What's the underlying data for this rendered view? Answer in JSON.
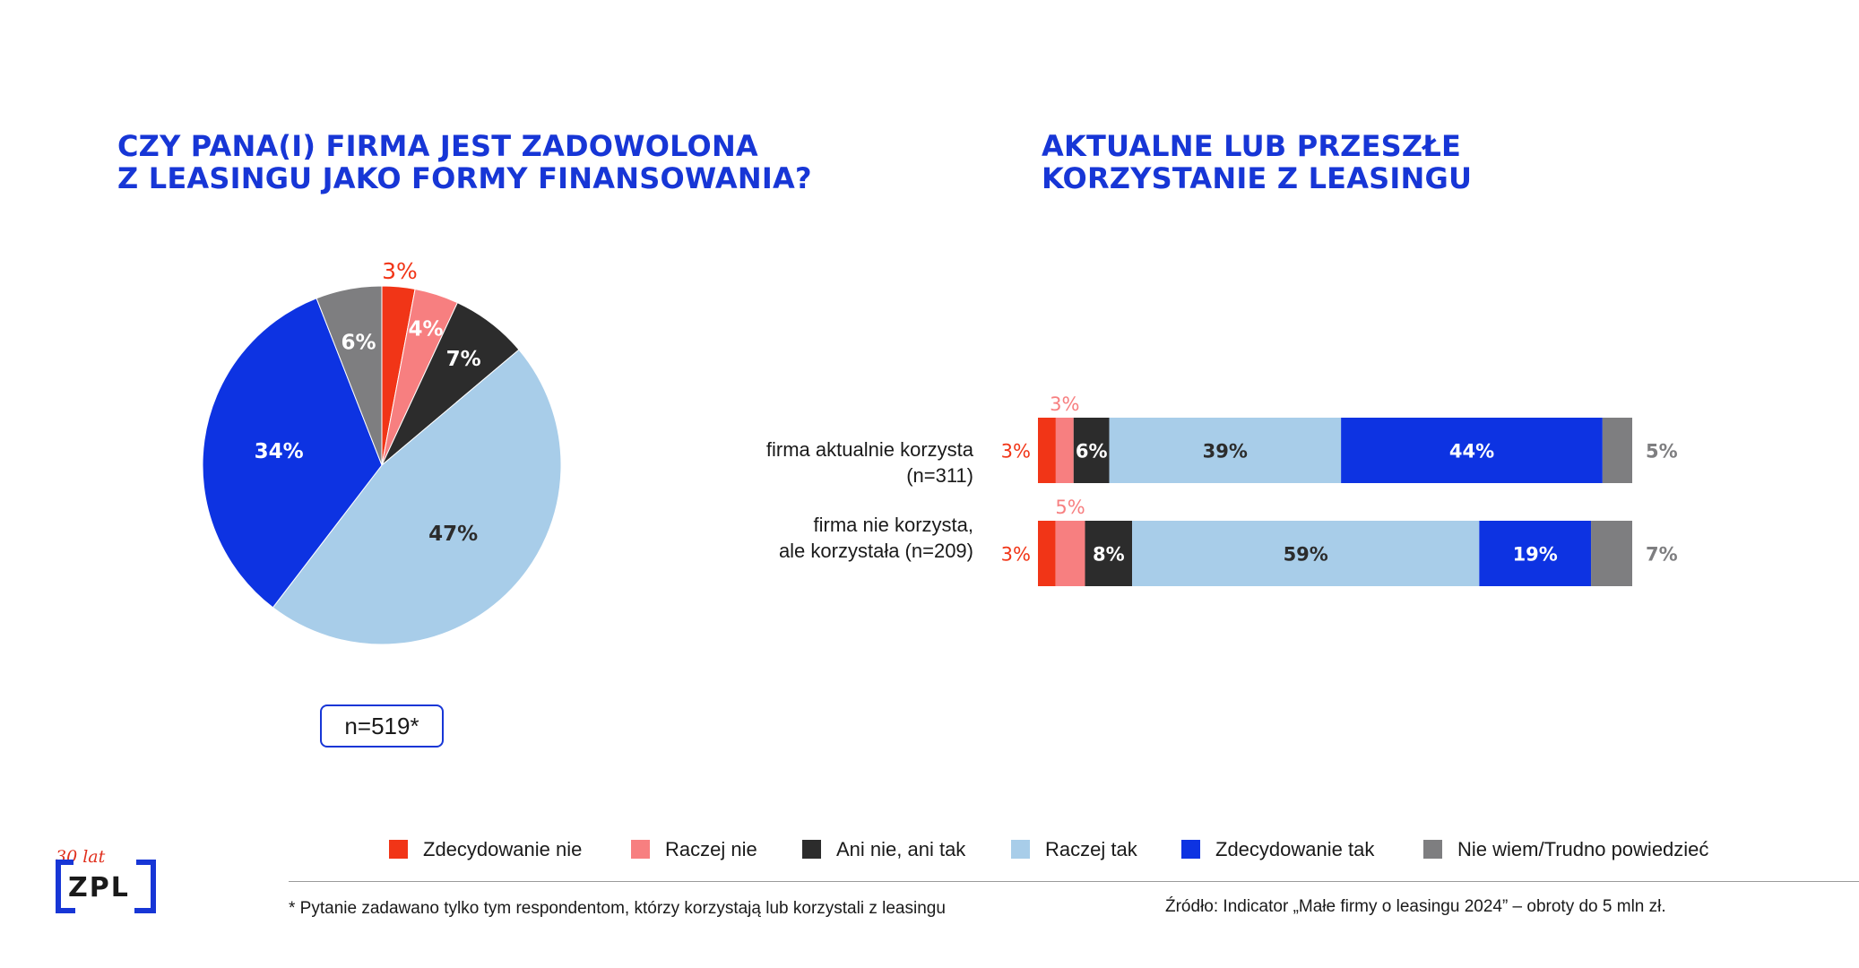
{
  "titles": {
    "left": [
      "CZY PANA(I) FIRMA JEST ZADOWOLONA",
      "Z LEASINGU JAKO FORMY FINANSOWANIA?"
    ],
    "right": [
      "AKTUALNE LUB PRZESZŁE",
      "KORZYSTANIE Z LEASINGU"
    ]
  },
  "colors": {
    "zdecydowanie_nie": "#f13517",
    "raczej_nie": "#f77f80",
    "ani_nie_ani_tak": "#2c2c2c",
    "raczej_tak": "#a8cde9",
    "zdecydowanie_tak": "#0d33e2",
    "nie_wiem": "#7e7e80",
    "title": "#1736d6"
  },
  "pie_n": "n=519*",
  "chart_data": [
    {
      "type": "pie",
      "title": "CZY PANA(I) FIRMA JEST ZADOWOLONA Z LEASINGU JAKO FORMY FINANSOWANIA?",
      "categories": [
        "Zdecydowanie nie",
        "Raczej nie",
        "Ani nie, ani tak",
        "Raczej tak",
        "Zdecydowanie tak",
        "Nie wiem/Trudno powiedzieć"
      ],
      "values": [
        3,
        4,
        7,
        47,
        34,
        6
      ],
      "labels": [
        "3%",
        "4%",
        "7%",
        "47%",
        "34%",
        "6%"
      ],
      "note": "n=519*"
    },
    {
      "type": "bar",
      "orientation": "horizontal",
      "stacked": true,
      "title": "AKTUALNE LUB PRZESZŁE KORZYSTANIE Z LEASINGU",
      "categories": [
        "firma aktualnie korzysta (n=311)",
        "firma nie korzysta, ale korzystała (n=209)"
      ],
      "category_lines": [
        [
          "firma aktualnie korzysta",
          "(n=311)"
        ],
        [
          "firma nie korzysta,",
          "ale korzystała (n=209)"
        ]
      ],
      "series": [
        {
          "name": "Zdecydowanie nie",
          "values": [
            3,
            3
          ],
          "labels": [
            "3%",
            "3%"
          ]
        },
        {
          "name": "Raczej nie",
          "values": [
            3,
            5
          ],
          "labels": [
            "3%",
            "5%"
          ]
        },
        {
          "name": "Ani nie, ani tak",
          "values": [
            6,
            8
          ],
          "labels": [
            "6%",
            "8%"
          ]
        },
        {
          "name": "Raczej tak",
          "values": [
            39,
            59
          ],
          "labels": [
            "39%",
            "59%"
          ]
        },
        {
          "name": "Zdecydowanie tak",
          "values": [
            44,
            19
          ],
          "labels": [
            "44%",
            "19%"
          ]
        },
        {
          "name": "Nie wiem/Trudno powiedzieć",
          "values": [
            5,
            7
          ],
          "labels": [
            "5%",
            "7%"
          ]
        }
      ]
    }
  ],
  "legend": [
    "Zdecydowanie nie",
    "Raczej nie",
    "Ani nie, ani tak",
    "Raczej tak",
    "Zdecydowanie tak",
    "Nie wiem/Trudno powiedzieć"
  ],
  "footnote": "* Pytanie zadawano tylko tym respondentom, którzy korzystają lub korzystali z leasingu",
  "source": "Źródło: Indicator „Małe firmy o leasingu 2024” – obroty do 5 mln zł.",
  "logo": {
    "anniversary": "30 lat",
    "text": "ZPL"
  }
}
